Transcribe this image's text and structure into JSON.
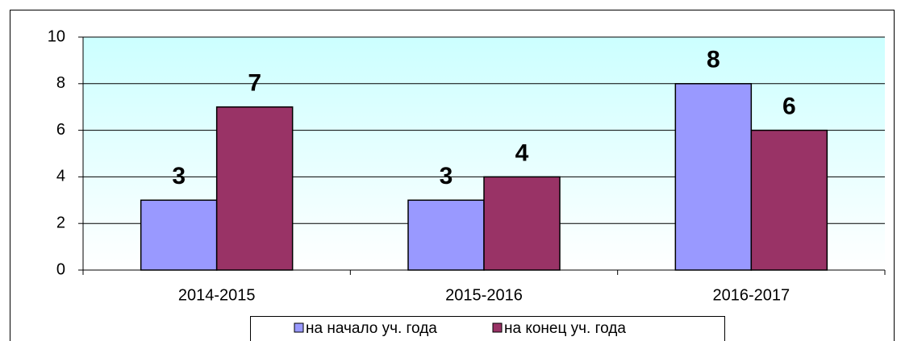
{
  "chart_data": {
    "type": "bar",
    "categories": [
      "2014-2015",
      "2015-2016",
      "2016-2017"
    ],
    "series": [
      {
        "name": "на начало уч. года",
        "color": "#9999ff",
        "values": [
          3,
          3,
          8
        ]
      },
      {
        "name": "на конец уч. года",
        "color": "#993366",
        "values": [
          7,
          4,
          6
        ]
      }
    ],
    "ylim": [
      0,
      10
    ],
    "yticks": [
      0,
      2,
      4,
      6,
      8,
      10
    ],
    "grid": true,
    "legend": "bottom"
  }
}
